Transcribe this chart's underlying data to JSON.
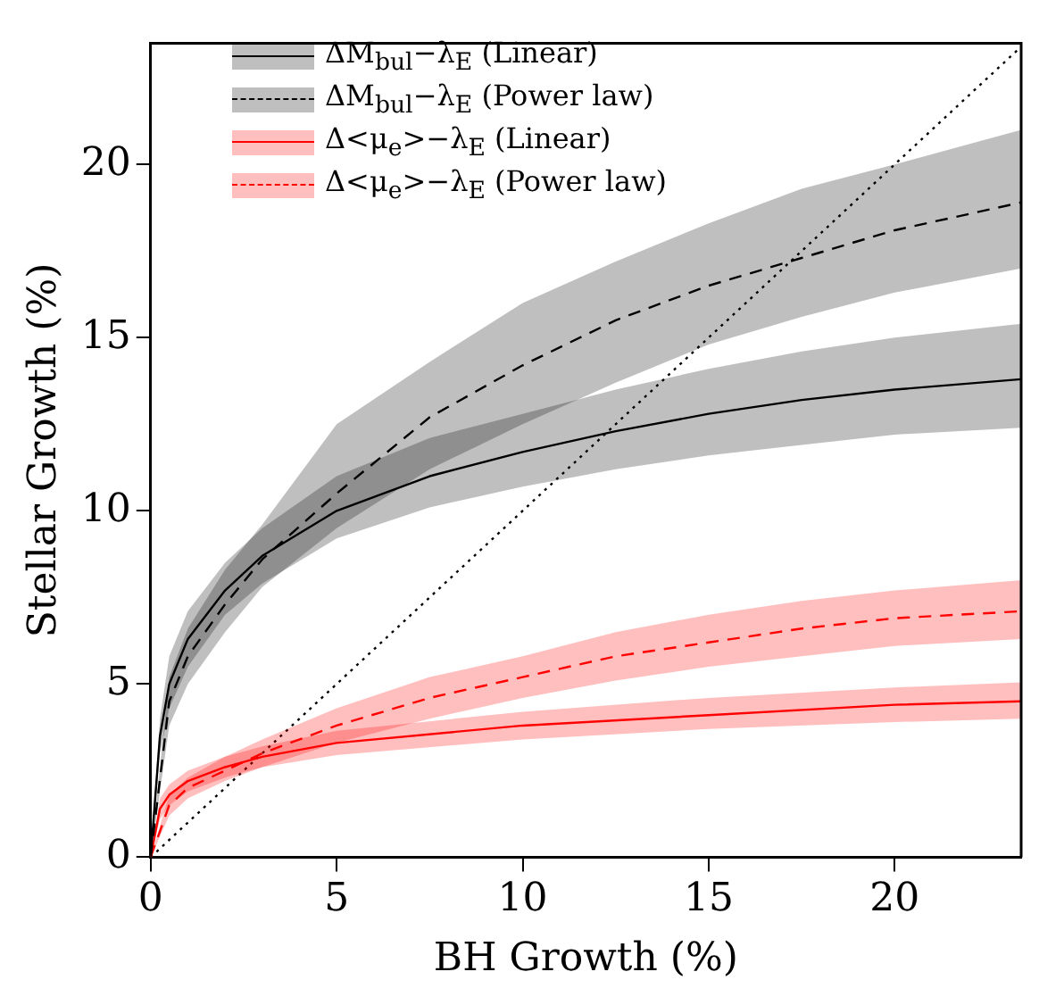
{
  "chart_data": {
    "type": "line",
    "xlabel": "BH Growth (%)",
    "ylabel": "Stellar Growth (%)",
    "xlim": [
      0,
      23.4
    ],
    "ylim": [
      0,
      23.5
    ],
    "xticks": [
      0,
      5,
      10,
      15,
      20
    ],
    "yticks": [
      0,
      5,
      10,
      15,
      20
    ],
    "grid": false,
    "legend": "top left",
    "series": [
      {
        "name": "ΔM$_{bul}$−λ$_{E}$ (Linear)",
        "color": "#000000",
        "line_style": "solid",
        "x": [
          0,
          0.25,
          0.5,
          1,
          2,
          3,
          5,
          7.5,
          10,
          12.5,
          15,
          17.5,
          20,
          23.4
        ],
        "values": [
          0,
          3.5,
          5,
          6.3,
          7.7,
          8.7,
          10,
          11,
          11.7,
          12.3,
          12.8,
          13.2,
          13.5,
          13.8
        ],
        "lower": [
          0,
          3,
          4.3,
          5.5,
          7,
          7.9,
          9.2,
          10.1,
          10.7,
          11.2,
          11.6,
          11.9,
          12.2,
          12.4
        ],
        "upper": [
          0,
          4,
          5.8,
          7.1,
          8.5,
          9.5,
          11,
          12.1,
          12.8,
          13.5,
          14.1,
          14.6,
          15,
          15.4
        ]
      },
      {
        "name": "ΔM$_{bul}$−λ$_{E}$ (Power law)",
        "color": "#000000",
        "line_style": "dashed",
        "x": [
          0,
          0.5,
          1,
          2,
          3,
          5,
          7.5,
          10,
          12.5,
          15,
          17.5,
          20,
          23.4
        ],
        "values": [
          0,
          4.5,
          5.8,
          7.3,
          8.6,
          10.5,
          12.7,
          14.2,
          15.5,
          16.5,
          17.3,
          18.1,
          18.9
        ],
        "lower": [
          0,
          3.8,
          5,
          6.5,
          7.8,
          9.5,
          11.2,
          12.5,
          13.7,
          14.8,
          15.6,
          16.3,
          17
        ],
        "upper": [
          0,
          5.2,
          6.6,
          8.3,
          9.6,
          12.5,
          14.3,
          16,
          17.2,
          18.3,
          19.3,
          20,
          21
        ]
      },
      {
        "name": "Δ<μ$_{e}$>−λ$_{E}$ (Linear)",
        "color": "#ff0000",
        "line_style": "solid",
        "x": [
          0,
          0.25,
          0.5,
          1,
          2,
          3,
          5,
          10,
          15,
          20,
          23.4
        ],
        "values": [
          0,
          1.4,
          1.8,
          2.2,
          2.6,
          2.9,
          3.3,
          3.8,
          4.1,
          4.4,
          4.5
        ],
        "lower": [
          0,
          1.1,
          1.5,
          1.9,
          2.3,
          2.6,
          2.95,
          3.4,
          3.7,
          3.9,
          4
        ],
        "upper": [
          0,
          1.7,
          2.1,
          2.5,
          2.9,
          3.2,
          3.65,
          4.2,
          4.6,
          4.9,
          5.05
        ]
      },
      {
        "name": "Δ<μ$_{e}$>−λ$_{E}$ (Power law)",
        "color": "#ff0000",
        "line_style": "dashed",
        "x": [
          0,
          0.5,
          1,
          2,
          3,
          5,
          7.5,
          10,
          12.5,
          15,
          17.5,
          20,
          23.4
        ],
        "values": [
          0,
          1.5,
          2,
          2.5,
          3,
          3.8,
          4.6,
          5.2,
          5.8,
          6.2,
          6.6,
          6.9,
          7.1
        ],
        "lower": [
          0,
          1.2,
          1.7,
          2.2,
          2.6,
          3.3,
          4,
          4.6,
          5.1,
          5.5,
          5.8,
          6.1,
          6.3
        ],
        "upper": [
          0,
          1.8,
          2.3,
          2.9,
          3.4,
          4.3,
          5.2,
          5.8,
          6.5,
          7,
          7.4,
          7.7,
          8
        ]
      },
      {
        "color": "#000000",
        "line_style": "dotted",
        "x": [
          0,
          23.4
        ],
        "values": [
          0,
          23.4
        ]
      }
    ]
  }
}
